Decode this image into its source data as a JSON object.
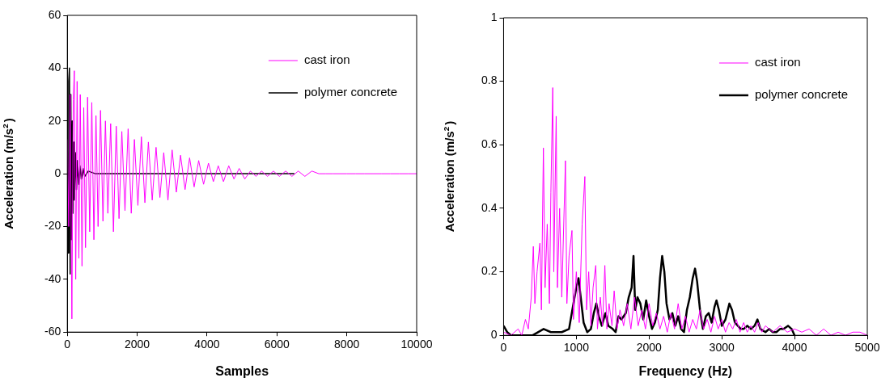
{
  "chart_data": [
    {
      "type": "line",
      "xlabel": "Samples",
      "ylabel": "Acceleration (m/s$^{2}$)",
      "xlim": [
        0,
        10000
      ],
      "xticks": [
        0,
        2000,
        4000,
        6000,
        8000,
        10000
      ],
      "ylim": [
        -60,
        60
      ],
      "yticks": [
        -60,
        -40,
        -20,
        0,
        20,
        40,
        60
      ],
      "grid": false,
      "legend": "top right",
      "marker": "none",
      "line_style": "solid",
      "series": [
        {
          "name": "cast iron",
          "color": "#ff00ff",
          "x": [
            0,
            40,
            80,
            130,
            170,
            200,
            240,
            280,
            330,
            370,
            420,
            470,
            520,
            580,
            640,
            700,
            760,
            820,
            880,
            950,
            1020,
            1090,
            1160,
            1240,
            1320,
            1400,
            1480,
            1560,
            1650,
            1740,
            1830,
            1920,
            2020,
            2120,
            2220,
            2320,
            2430,
            2540,
            2650,
            2760,
            2880,
            3000,
            3120,
            3240,
            3370,
            3500,
            3630,
            3760,
            3900,
            4040,
            4180,
            4320,
            4470,
            4620,
            4770,
            4920,
            5080,
            5240,
            5400,
            5560,
            5730,
            5900,
            6070,
            6250,
            6430,
            6610,
            6800,
            7000,
            7200,
            7400,
            7600,
            7800,
            8000,
            8250,
            8500,
            8750,
            9000,
            9250,
            9500,
            9750,
            10000
          ],
          "values": [
            13,
            -20,
            30,
            -55,
            28,
            39,
            -40,
            35,
            -32,
            30,
            -35,
            25,
            -28,
            29,
            -22,
            27,
            -25,
            22,
            -20,
            24,
            -18,
            20,
            -15,
            19,
            -22,
            18,
            -17,
            16,
            -14,
            17,
            -15,
            13,
            -12,
            14,
            -11,
            12,
            -10,
            10,
            -9,
            8,
            -10,
            9,
            -7,
            7,
            -6,
            6,
            -5,
            5,
            -4,
            4,
            -3,
            3,
            -3,
            3,
            -2,
            2,
            -2,
            1,
            -1,
            1,
            -1,
            1,
            -1,
            1,
            -1,
            1,
            -1,
            1,
            0,
            0,
            0,
            0,
            0,
            0,
            0,
            0,
            0,
            0,
            0,
            0,
            0
          ]
        },
        {
          "name": "polymer concrete",
          "color": "#000000",
          "x": [
            0,
            20,
            40,
            60,
            80,
            100,
            120,
            140,
            160,
            180,
            200,
            230,
            260,
            290,
            320,
            360,
            400,
            450,
            500,
            600,
            800,
            1000,
            6500
          ],
          "values": [
            10,
            -30,
            35,
            40,
            -38,
            30,
            -25,
            20,
            -15,
            12,
            -10,
            8,
            -6,
            5,
            -4,
            3,
            -2,
            2,
            -1,
            1,
            0,
            0,
            0
          ]
        }
      ]
    },
    {
      "type": "line",
      "xlabel": "Frequency (Hz)",
      "ylabel": "Acceleration (m/s$^{2}$)",
      "xlim": [
        0,
        5000
      ],
      "xticks": [
        0,
        1000,
        2000,
        3000,
        4000,
        5000
      ],
      "ylim": [
        0,
        1
      ],
      "yticks": [
        0,
        0.2,
        0.4,
        0.6,
        0.8,
        1
      ],
      "grid": false,
      "legend": "top right",
      "marker": "none",
      "line_style": "solid",
      "series": [
        {
          "name": "cast iron",
          "color": "#ff00ff",
          "x": [
            0,
            100,
            200,
            250,
            300,
            340,
            380,
            409,
            430,
            460,
            499,
            520,
            547,
            570,
            600,
            630,
            650,
            676,
            690,
            723,
            740,
            770,
            800,
            850,
            870,
            900,
            940,
            960,
            1000,
            1040,
            1080,
            1117,
            1140,
            1170,
            1200,
            1230,
            1267,
            1290,
            1330,
            1360,
            1392,
            1420,
            1450,
            1490,
            1520,
            1560,
            1600,
            1650,
            1700,
            1750,
            1800,
            1850,
            1900,
            1950,
            2000,
            2050,
            2100,
            2150,
            2200,
            2250,
            2300,
            2350,
            2400,
            2450,
            2500,
            2550,
            2600,
            2650,
            2700,
            2750,
            2800,
            2850,
            2900,
            2950,
            3000,
            3050,
            3100,
            3150,
            3200,
            3250,
            3300,
            3350,
            3400,
            3450,
            3500,
            3550,
            3600,
            3700,
            3800,
            3900,
            4000,
            4100,
            4200,
            4300,
            4400,
            4500,
            4600,
            4700,
            4800,
            4900,
            5000
          ],
          "values": [
            0.01,
            0,
            0.02,
            0,
            0.05,
            0.02,
            0.12,
            0.28,
            0.1,
            0.2,
            0.29,
            0.08,
            0.59,
            0.15,
            0.35,
            0.1,
            0.45,
            0.78,
            0.2,
            0.69,
            0.15,
            0.4,
            0.12,
            0.55,
            0.1,
            0.25,
            0.33,
            0.05,
            0.2,
            0.04,
            0.35,
            0.5,
            0.08,
            0.2,
            0.03,
            0.15,
            0.22,
            0.02,
            0.12,
            0.03,
            0.22,
            0.02,
            0.1,
            0.03,
            0.14,
            0.02,
            0.08,
            0.03,
            0.1,
            0.02,
            0.12,
            0.03,
            0.08,
            0.02,
            0.1,
            0.03,
            0.07,
            0.02,
            0.06,
            0.01,
            0.07,
            0.02,
            0.1,
            0.02,
            0.06,
            0.01,
            0.05,
            0.02,
            0.08,
            0.02,
            0.05,
            0.01,
            0.06,
            0.02,
            0.05,
            0.01,
            0.04,
            0.02,
            0.05,
            0.01,
            0.04,
            0.01,
            0.03,
            0.01,
            0.04,
            0.01,
            0.03,
            0.01,
            0.03,
            0.01,
            0.02,
            0.01,
            0.02,
            0,
            0.02,
            0,
            0.01,
            0,
            0.01,
            0.01,
            0
          ]
        },
        {
          "name": "polymer concrete",
          "color": "#000000",
          "x": [
            0,
            50,
            100,
            400,
            550,
            650,
            800,
            900,
            960,
            1000,
            1030,
            1060,
            1100,
            1150,
            1200,
            1240,
            1275,
            1310,
            1350,
            1400,
            1440,
            1500,
            1540,
            1580,
            1620,
            1680,
            1720,
            1760,
            1786,
            1810,
            1840,
            1880,
            1920,
            1960,
            2000,
            2040,
            2080,
            2120,
            2150,
            2180,
            2210,
            2240,
            2280,
            2320,
            2360,
            2400,
            2440,
            2480,
            2520,
            2560,
            2600,
            2632,
            2660,
            2700,
            2740,
            2780,
            2820,
            2860,
            2900,
            2927,
            2960,
            3000,
            3050,
            3104,
            3140,
            3180,
            3220,
            3260,
            3300,
            3350,
            3400,
            3450,
            3490,
            3530,
            3600,
            3650,
            3700,
            3750,
            3800,
            3850,
            3910,
            3960,
            4000
          ],
          "values": [
            0.03,
            0.01,
            0,
            0,
            0.02,
            0.01,
            0.01,
            0.02,
            0.1,
            0.15,
            0.18,
            0.12,
            0.04,
            0.01,
            0.02,
            0.07,
            0.1,
            0.06,
            0.03,
            0.07,
            0.03,
            0.02,
            0.01,
            0.06,
            0.05,
            0.07,
            0.12,
            0.15,
            0.25,
            0.08,
            0.12,
            0.1,
            0.05,
            0.11,
            0.06,
            0.02,
            0.04,
            0.08,
            0.18,
            0.25,
            0.2,
            0.1,
            0.05,
            0.07,
            0.03,
            0.06,
            0.02,
            0.01,
            0.08,
            0.12,
            0.18,
            0.21,
            0.17,
            0.08,
            0.02,
            0.06,
            0.07,
            0.04,
            0.09,
            0.11,
            0.08,
            0.03,
            0.05,
            0.1,
            0.08,
            0.04,
            0.03,
            0.02,
            0.02,
            0.03,
            0.02,
            0.03,
            0.05,
            0.02,
            0.01,
            0.02,
            0.01,
            0.01,
            0.02,
            0.02,
            0.03,
            0.02,
            0
          ]
        }
      ]
    }
  ]
}
